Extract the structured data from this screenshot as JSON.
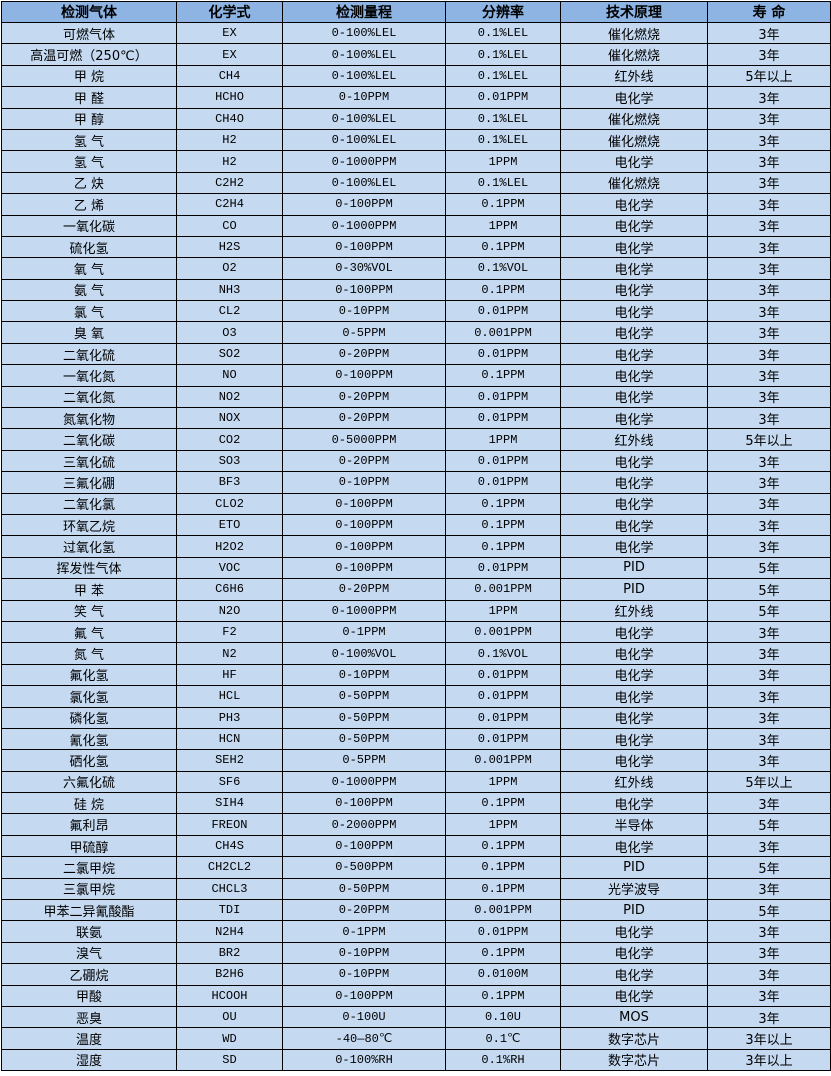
{
  "table": {
    "headers": [
      "检测气体",
      "化学式",
      "检测量程",
      "分辨率",
      "技术原理",
      "寿 命"
    ],
    "rows": [
      [
        "可燃气体",
        "EX",
        "0-100%LEL",
        "0.1%LEL",
        "催化燃烧",
        "3年"
      ],
      [
        "高温可燃（250℃）",
        "EX",
        "0-100%LEL",
        "0.1%LEL",
        "催化燃烧",
        "3年"
      ],
      [
        "甲 烷",
        "CH4",
        "0-100%LEL",
        "0.1%LEL",
        "红外线",
        "5年以上"
      ],
      [
        "甲 醛",
        "HCHO",
        "0-10PPM",
        "0.01PPM",
        "电化学",
        "3年"
      ],
      [
        "甲 醇",
        "CH4O",
        "0-100%LEL",
        "0.1%LEL",
        "催化燃烧",
        "3年"
      ],
      [
        "氢 气",
        "H2",
        "0-100%LEL",
        "0.1%LEL",
        "催化燃烧",
        "3年"
      ],
      [
        "氢 气",
        "H2",
        "0-1000PPM",
        "1PPM",
        "电化学",
        "3年"
      ],
      [
        "乙 炔",
        "C2H2",
        "0-100%LEL",
        "0.1%LEL",
        "催化燃烧",
        "3年"
      ],
      [
        "乙 烯",
        "C2H4",
        "0-100PPM",
        "0.1PPM",
        "电化学",
        "3年"
      ],
      [
        "一氧化碳",
        "CO",
        "0-1000PPM",
        "1PPM",
        "电化学",
        "3年"
      ],
      [
        "硫化氢",
        "H2S",
        "0-100PPM",
        "0.1PPM",
        "电化学",
        "3年"
      ],
      [
        "氧 气",
        "O2",
        "0-30%VOL",
        "0.1%VOL",
        "电化学",
        "3年"
      ],
      [
        "氨 气",
        "NH3",
        "0-100PPM",
        "0.1PPM",
        "电化学",
        "3年"
      ],
      [
        "氯 气",
        "CL2",
        "0-10PPM",
        "0.01PPM",
        "电化学",
        "3年"
      ],
      [
        "臭 氧",
        "O3",
        "0-5PPM",
        "0.001PPM",
        "电化学",
        "3年"
      ],
      [
        "二氧化硫",
        "SO2",
        "0-20PPM",
        "0.01PPM",
        "电化学",
        "3年"
      ],
      [
        "一氧化氮",
        "NO",
        "0-100PPM",
        "0.1PPM",
        "电化学",
        "3年"
      ],
      [
        "二氧化氮",
        "NO2",
        "0-20PPM",
        "0.01PPM",
        "电化学",
        "3年"
      ],
      [
        "氮氧化物",
        "NOX",
        "0-20PPM",
        "0.01PPM",
        "电化学",
        "3年"
      ],
      [
        "二氧化碳",
        "CO2",
        "0-5000PPM",
        "1PPM",
        "红外线",
        "5年以上"
      ],
      [
        "三氧化硫",
        "SO3",
        "0-20PPM",
        "0.01PPM",
        "电化学",
        "3年"
      ],
      [
        "三氟化硼",
        "BF3",
        "0-10PPM",
        "0.01PPM",
        "电化学",
        "3年"
      ],
      [
        "二氧化氯",
        "CLO2",
        "0-100PPM",
        "0.1PPM",
        "电化学",
        "3年"
      ],
      [
        "环氧乙烷",
        "ETO",
        "0-100PPM",
        "0.1PPM",
        "电化学",
        "3年"
      ],
      [
        "过氧化氢",
        "H2O2",
        "0-100PPM",
        "0.1PPM",
        "电化学",
        "3年"
      ],
      [
        "挥发性气体",
        "VOC",
        "0-100PPM",
        "0.01PPM",
        "PID",
        "5年"
      ],
      [
        "甲 苯",
        "C6H6",
        "0-20PPM",
        "0.001PPM",
        "PID",
        "5年"
      ],
      [
        "笑 气",
        "N2O",
        "0-1000PPM",
        "1PPM",
        "红外线",
        "5年"
      ],
      [
        "氟 气",
        "F2",
        "0-1PPM",
        "0.001PPM",
        "电化学",
        "3年"
      ],
      [
        "氮 气",
        "N2",
        "0-100%VOL",
        "0.1%VOL",
        "电化学",
        "3年"
      ],
      [
        "氟化氢",
        "HF",
        "0-10PPM",
        "0.01PPM",
        "电化学",
        "3年"
      ],
      [
        "氯化氢",
        "HCL",
        "0-50PPM",
        "0.01PPM",
        "电化学",
        "3年"
      ],
      [
        "磷化氢",
        "PH3",
        "0-50PPM",
        "0.01PPM",
        "电化学",
        "3年"
      ],
      [
        "氰化氢",
        "HCN",
        "0-50PPM",
        "0.01PPM",
        "电化学",
        "3年"
      ],
      [
        "硒化氢",
        "SEH2",
        "0-5PPM",
        "0.001PPM",
        "电化学",
        "3年"
      ],
      [
        "六氟化硫",
        "SF6",
        "0-1000PPM",
        "1PPM",
        "红外线",
        "5年以上"
      ],
      [
        "硅 烷",
        "SIH4",
        "0-100PPM",
        "0.1PPM",
        "电化学",
        "3年"
      ],
      [
        "氟利昂",
        "FREON",
        "0-2000PPM",
        "1PPM",
        "半导体",
        "5年"
      ],
      [
        "甲硫醇",
        "CH4S",
        "0-100PPM",
        "0.1PPM",
        "电化学",
        "3年"
      ],
      [
        "二氯甲烷",
        "CH2CL2",
        "0-500PPM",
        "0.1PPM",
        "PID",
        "5年"
      ],
      [
        "三氯甲烷",
        "CHCL3",
        "0-50PPM",
        "0.1PPM",
        "光学波导",
        "3年"
      ],
      [
        "甲苯二异氰酸酯",
        "TDI",
        "0-20PPM",
        "0.001PPM",
        "PID",
        "5年"
      ],
      [
        "联氨",
        "N2H4",
        "0-1PPM",
        "0.01PPM",
        "电化学",
        "3年"
      ],
      [
        "溴气",
        "BR2",
        "0-10PPM",
        "0.1PPM",
        "电化学",
        "3年"
      ],
      [
        "乙硼烷",
        "B2H6",
        "0-10PPM",
        "0.0100M",
        "电化学",
        "3年"
      ],
      [
        "甲酸",
        "HCOOH",
        "0-100PPM",
        "0.1PPM",
        "电化学",
        "3年"
      ],
      [
        "恶臭",
        "OU",
        "0-100U",
        "0.10U",
        "MOS",
        "3年"
      ],
      [
        "温度",
        "WD",
        "-40—80℃",
        "0.1℃",
        "数字芯片",
        "3年以上"
      ],
      [
        "湿度",
        "SD",
        "0-100%RH",
        "0.1%RH",
        "数字芯片",
        "3年以上"
      ]
    ]
  },
  "colors": {
    "header_bg": "#8db4e2",
    "row_bg": "#c5d9f1",
    "border": "#000000"
  }
}
